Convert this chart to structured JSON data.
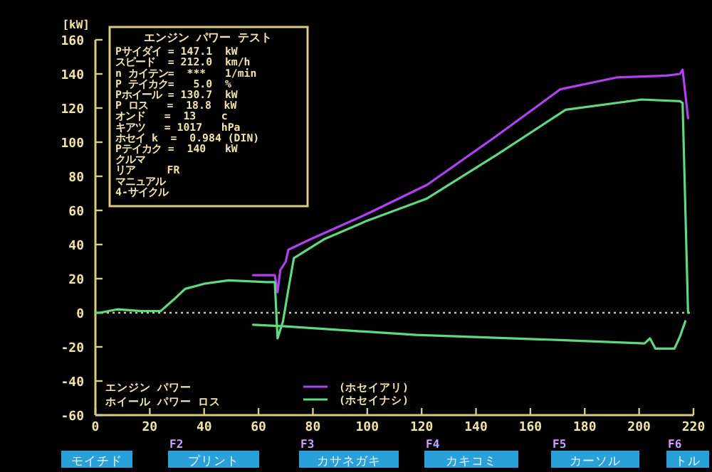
{
  "chart_data": {
    "type": "line",
    "ylabel": "[kW]",
    "xlim": [
      0,
      220
    ],
    "ylim": [
      -60,
      160
    ],
    "xticks": [
      0,
      20,
      40,
      60,
      80,
      100,
      120,
      140,
      160,
      180,
      200,
      220
    ],
    "yticks": [
      -60,
      -40,
      -20,
      0,
      20,
      40,
      60,
      80,
      100,
      120,
      140,
      160
    ],
    "grid": false,
    "legend": "bottom",
    "marker": "none",
    "line_style": "solid",
    "ref_lines": [
      {
        "axis": "y",
        "value": 0,
        "label": null,
        "color": "#d8cc80",
        "line_style": "dotted"
      }
    ],
    "series": [
      {
        "name": "(ホセイアリ)",
        "color": "#b040f0",
        "x": [
          58,
          66,
          67,
          68,
          70,
          71,
          79,
          100,
          122,
          147,
          171,
          192,
          210,
          215,
          216,
          218
        ],
        "values": [
          22,
          22,
          12,
          25,
          30,
          37,
          43,
          58,
          75,
          103,
          131,
          138,
          139,
          140,
          142.5,
          114
        ]
      },
      {
        "name": "(ホセイナシ)",
        "color": "#60d880",
        "x": [
          0,
          1.5,
          8,
          17,
          24,
          29,
          33,
          40,
          49,
          63,
          66,
          67,
          69,
          71,
          73,
          84,
          100,
          122,
          148,
          173,
          201,
          215,
          216,
          218
        ],
        "values": [
          0,
          0,
          2,
          1,
          1,
          8,
          14,
          17,
          19,
          18,
          18,
          -15,
          -5,
          14,
          32,
          43,
          54,
          67,
          93,
          119,
          125,
          124,
          123,
          0
        ]
      },
      {
        "color": "#60d880",
        "x": [
          58,
          70,
          118,
          171,
          202,
          204,
          206,
          213,
          215,
          217
        ],
        "values": [
          -7,
          -8,
          -13,
          -16,
          -18,
          -15,
          -21,
          -21,
          -14,
          -5
        ]
      }
    ],
    "annotations": [
      "エンジン パワー テスト",
      "Pサイダイ = 147.1  kW",
      "スピード  = 212.0  km/h",
      "n カイテン=  ***   1/min",
      "P テイカク=   5.0  %",
      "Pホイール = 130.7  kW",
      "P ロス   =  18.8  kW",
      "オンド   =  13    c",
      "キアツ   = 1017   hPa",
      "ホセイ k  =  0.984 (DIN)",
      "Pテイカク =  140   kW",
      "クルマ",
      "リア     FR",
      "マニュアル",
      "4-サイクル",
      "エンジン パワー",
      "ホイール パワー ロス",
      "モイチド",
      "F2",
      "プリント",
      "F3",
      "カサネガキ",
      "F4",
      "カキコミ",
      "F5",
      "カーソル",
      "F6",
      "トル"
    ]
  }
}
